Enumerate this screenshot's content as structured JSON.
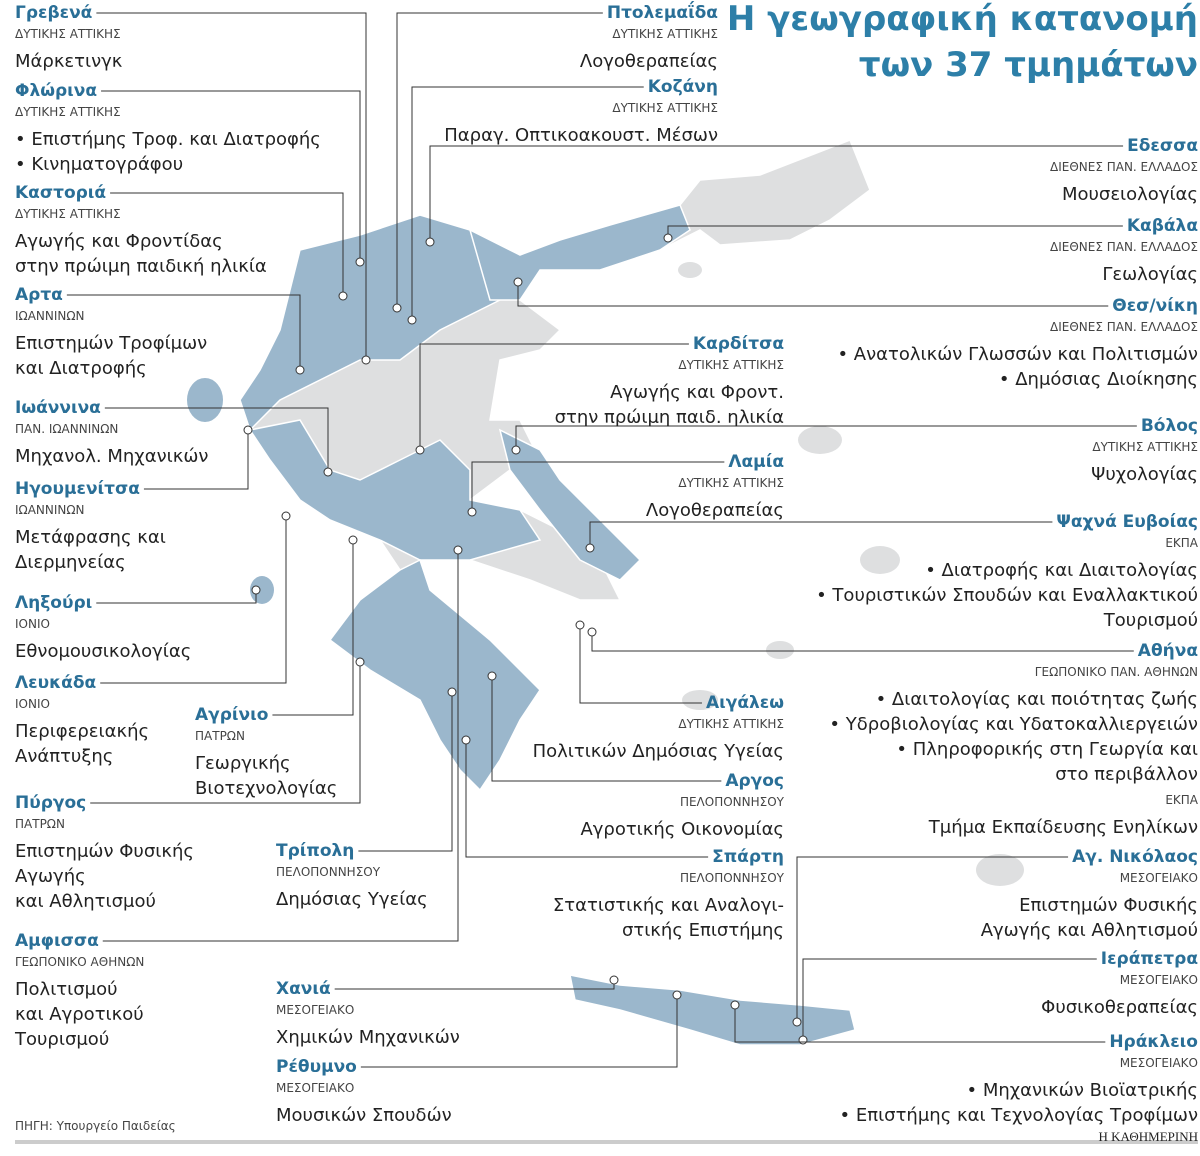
{
  "header": {
    "title_lines": [
      "Η γεωγραφική κατανομή",
      "των 37 τμημάτων"
    ]
  },
  "entries": [
    {
      "city": "Γρεβενά",
      "groups": [
        {
          "university": "ΔΥΤΙΚΗΣ ΑΤΤΙΚΗΣ",
          "departments": [
            "Μάρκετινγκ"
          ]
        }
      ]
    },
    {
      "city": "Φλώρινα",
      "groups": [
        {
          "university": "ΔΥΤΙΚΗΣ ΑΤΤΙΚΗΣ",
          "departments": [
            "• Επιστήμης Τροφ. και Διατροφής",
            "• Κινηματογράφου"
          ]
        }
      ]
    },
    {
      "city": "Καστοριά",
      "groups": [
        {
          "university": "ΔΥΤΙΚΗΣ ΑΤΤΙΚΗΣ",
          "departments": [
            "Αγωγής και Φροντίδας",
            "στην πρώιμη παιδική ηλικία"
          ]
        }
      ]
    },
    {
      "city": "Αρτα",
      "groups": [
        {
          "university": "ΙΩΑΝΝΙΝΩΝ",
          "departments": [
            "Επιστημών Τροφίμων",
            "και Διατροφής"
          ]
        }
      ]
    },
    {
      "city": "Ιωάννινα",
      "groups": [
        {
          "university": "ΠΑΝ. ΙΩΑΝΝΙΝΩΝ",
          "departments": [
            "Μηχανολ. Μηχανικών"
          ]
        }
      ]
    },
    {
      "city": "Ηγουμενίτσα",
      "groups": [
        {
          "university": "ΙΩΑΝΝΙΝΩΝ",
          "departments": [
            "Μετάφρασης και",
            "Διερμηνείας"
          ]
        }
      ]
    },
    {
      "city": "Ληξούρι",
      "groups": [
        {
          "university": "ΙΟΝΙΟ",
          "departments": [
            "Εθνομουσικολογίας"
          ]
        }
      ]
    },
    {
      "city": "Λευκάδα",
      "groups": [
        {
          "university": "ΙΟΝΙΟ",
          "departments": [
            "Περιφερειακής",
            "Ανάπτυξης"
          ]
        }
      ]
    },
    {
      "city": "Πύργος",
      "groups": [
        {
          "university": "ΠΑΤΡΩΝ",
          "departments": [
            "Επιστημών Φυσικής",
            "Αγωγής",
            "και Αθλητισμού"
          ]
        }
      ]
    },
    {
      "city": "Αμφισσα",
      "groups": [
        {
          "university": "ΓΕΩΠΟΝΙΚΟ ΑΘΗΝΩΝ",
          "departments": [
            "Πολιτισμού",
            "και Αγροτικού",
            "Τουρισμού"
          ]
        }
      ]
    },
    {
      "city": "Αγρίνιο",
      "groups": [
        {
          "university": "ΠΑΤΡΩΝ",
          "departments": [
            "Γεωργικής",
            "Βιοτεχνολογίας"
          ]
        }
      ]
    },
    {
      "city": "Τρίπολη",
      "groups": [
        {
          "university": "ΠΕΛΟΠΟΝΝΗΣΟΥ",
          "departments": [
            "Δημόσιας Υγείας"
          ]
        }
      ]
    },
    {
      "city": "Χανιά",
      "groups": [
        {
          "university": "ΜΕΣΟΓΕΙΑΚΟ",
          "departments": [
            "Χημικών Μηχανικών"
          ]
        }
      ]
    },
    {
      "city": "Ρέθυμνο",
      "groups": [
        {
          "university": "ΜΕΣΟΓΕΙΑΚΟ",
          "departments": [
            "Μουσικών Σπουδών"
          ]
        }
      ]
    },
    {
      "city": "Πτολεμαΐδα",
      "groups": [
        {
          "university": "ΔΥΤΙΚΗΣ ΑΤΤΙΚΗΣ",
          "departments": [
            "Λογοθεραπείας"
          ]
        }
      ]
    },
    {
      "city": "Κοζάνη",
      "groups": [
        {
          "university": "ΔΥΤΙΚΗΣ ΑΤΤΙΚΗΣ",
          "departments": [
            "Παραγ. Οπτικοακουστ. Μέσων"
          ]
        }
      ]
    },
    {
      "city": "Καρδίτσα",
      "groups": [
        {
          "university": "ΔΥΤΙΚΗΣ ΑΤΤΙΚΗΣ",
          "departments": [
            "Αγωγής και Φροντ.",
            "στην πρώιμη παιδ. ηλικία"
          ]
        }
      ]
    },
    {
      "city": "Λαμία",
      "groups": [
        {
          "university": "ΔΥΤΙΚΗΣ ΑΤΤΙΚΗΣ",
          "departments": [
            "Λογοθεραπείας"
          ]
        }
      ]
    },
    {
      "city": "Αιγάλεω",
      "groups": [
        {
          "university": "ΔΥΤΙΚΗΣ ΑΤΤΙΚΗΣ",
          "departments": [
            "Πολιτικών Δημόσιας Υγείας"
          ]
        }
      ]
    },
    {
      "city": "Αργος",
      "groups": [
        {
          "university": "ΠΕΛΟΠΟΝΝΗΣΟΥ",
          "departments": [
            "Αγροτικής Οικονομίας"
          ]
        }
      ]
    },
    {
      "city": "Σπάρτη",
      "groups": [
        {
          "university": "ΠΕΛΟΠΟΝΝΗΣΟΥ",
          "departments": [
            "Στατιστικής και Αναλογι-",
            "στικής Επιστήμης"
          ]
        }
      ]
    },
    {
      "city": "Εδεσσα",
      "groups": [
        {
          "university": "ΔΙΕΘΝΕΣ ΠΑΝ. ΕΛΛΑΔΟΣ",
          "departments": [
            "Μουσειολογίας"
          ]
        }
      ]
    },
    {
      "city": "Καβάλα",
      "groups": [
        {
          "university": "ΔΙΕΘΝΕΣ ΠΑΝ. ΕΛΛΑΔΟΣ",
          "departments": [
            "Γεωλογίας"
          ]
        }
      ]
    },
    {
      "city": "Θεσ/νίκη",
      "groups": [
        {
          "university": "ΔΙΕΘΝΕΣ ΠΑΝ. ΕΛΛΑΔΟΣ",
          "departments": [
            "• Ανατολικών Γλωσσών και Πολιτισμών",
            "• Δημόσιας Διοίκησης"
          ]
        }
      ]
    },
    {
      "city": "Βόλος",
      "groups": [
        {
          "university": "ΔΥΤΙΚΗΣ ΑΤΤΙΚΗΣ",
          "departments": [
            "Ψυχολογίας"
          ]
        }
      ]
    },
    {
      "city": "Ψαχνά Ευβοίας",
      "groups": [
        {
          "university": "ΕΚΠΑ",
          "departments": [
            "• Διατροφής και Διαιτολογίας",
            "• Τουριστικών Σπουδών και Εναλλακτικού",
            "Τουρισμού"
          ]
        }
      ]
    },
    {
      "city": "Αθήνα",
      "groups": [
        {
          "university": "ΓΕΩΠΟΝΙΚΟ ΠΑΝ. ΑΘΗΝΩΝ",
          "departments": [
            "• Διαιτολογίας και ποιότητας ζωής",
            "• Υδροβιολογίας και Υδατοκαλλιεργειών",
            "• Πληροφορικής στη Γεωργία και",
            "στο περιβάλλον"
          ]
        },
        {
          "university": "ΕΚΠΑ",
          "departments": [
            "Τμήμα Εκπαίδευσης Ενηλίκων"
          ]
        }
      ]
    },
    {
      "city": "Αγ. Νικόλαος",
      "groups": [
        {
          "university": "ΜΕΣΟΓΕΙΑΚΟ",
          "departments": [
            "Επιστημών Φυσικής",
            "Αγωγής και Αθλητισμού"
          ]
        }
      ]
    },
    {
      "city": "Ιεράπετρα",
      "groups": [
        {
          "university": "ΜΕΣΟΓΕΙΑΚΟ",
          "departments": [
            "Φυσικοθεραπείας"
          ]
        }
      ]
    },
    {
      "city": "Ηράκλειο",
      "groups": [
        {
          "university": "ΜΕΣΟΓΕΙΑΚΟ",
          "departments": [
            "• Μηχανικών Βιοϊατρικής",
            "• Επιστήμης και Τεχνολογίας Τροφίμων"
          ]
        }
      ]
    }
  ],
  "footer": {
    "source": "ΠΗΓΗ: Υπουργείο Παιδείας",
    "publisher": "Η ΚΑΘΗΜΕΡΙΝΗ"
  }
}
